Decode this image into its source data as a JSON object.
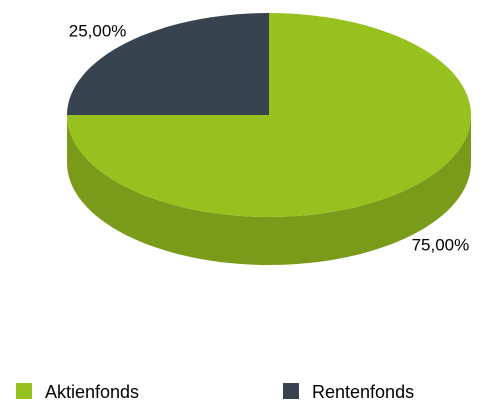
{
  "chart_data": {
    "type": "pie3d",
    "categories": [
      "Aktienfonds",
      "Rentenfonds"
    ],
    "values": [
      75,
      25
    ],
    "value_labels": [
      "75,00%",
      "25,00%"
    ],
    "colors": [
      "#97c11f",
      "#37444f"
    ],
    "side_colors": [
      "#7a9b19",
      "#29333b"
    ],
    "legend": "bottom"
  }
}
